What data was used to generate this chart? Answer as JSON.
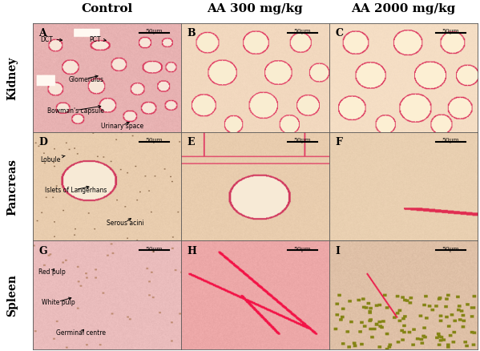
{
  "col_headers": [
    "Control",
    "AA 300 mg/kg",
    "AA 2000 mg/kg"
  ],
  "row_labels": [
    "Kidney",
    "Pancreas",
    "Spleen"
  ],
  "panel_labels": [
    [
      "A",
      "B",
      "C"
    ],
    [
      "D",
      "E",
      "F"
    ],
    [
      "G",
      "H",
      "I"
    ]
  ],
  "scale_bar_text": "50μm",
  "background_color": "#ffffff",
  "title_fontsize": 11,
  "label_fontsize": 10,
  "annotation_fontsize": 5.5,
  "panel_label_fontsize": 9
}
